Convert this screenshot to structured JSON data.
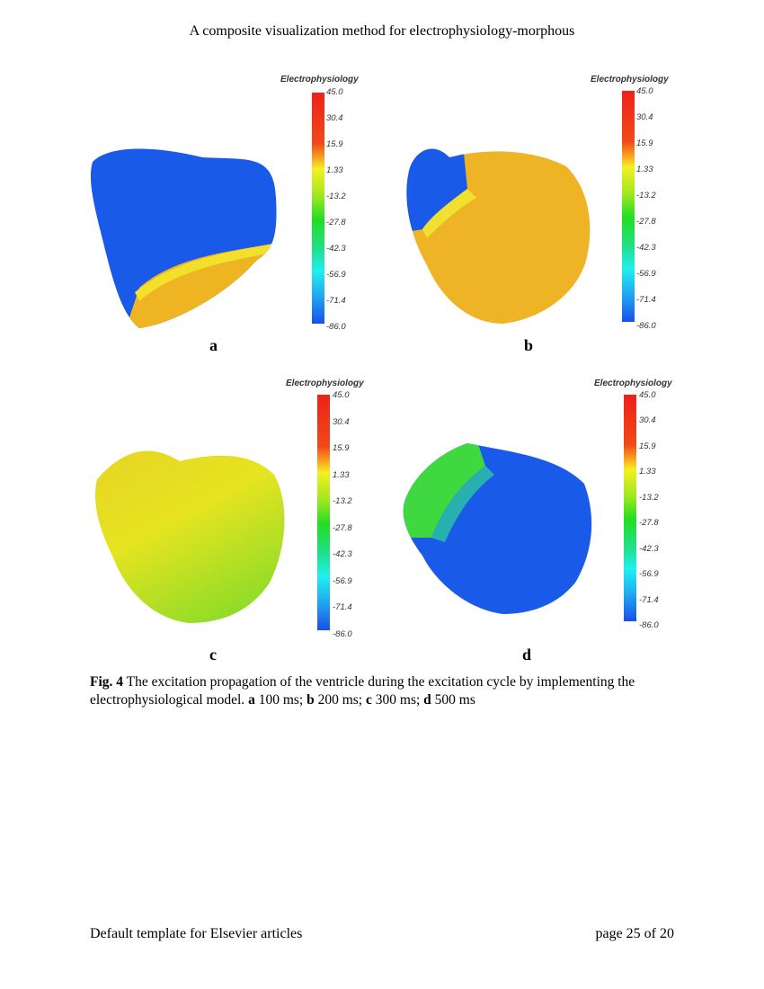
{
  "header": {
    "running_title": "A composite visualization method for electrophysiology-morphous"
  },
  "figure": {
    "colorbar": {
      "title": "Electrophysiology",
      "ticks": [
        "45.0",
        "30.4",
        "15.9",
        "1.33",
        "-13.2",
        "-27.8",
        "-42.3",
        "-56.9",
        "-71.4",
        "-86.0"
      ]
    },
    "panels": [
      {
        "label": "a"
      },
      {
        "label": "b"
      },
      {
        "label": "c"
      },
      {
        "label": "d"
      }
    ],
    "colors": {
      "blue": "#1a5ae8",
      "orange": "#f0b020",
      "yellow": "#e8e020",
      "green": "#40d840"
    }
  },
  "caption": {
    "fig_label": "Fig. 4",
    "text": " The excitation propagation of the ventricle during the excitation cycle by implementing the electrophysiological model. ",
    "parts": [
      {
        "k": "a",
        "v": " 100 ms; "
      },
      {
        "k": "b",
        "v": " 200 ms; "
      },
      {
        "k": "c",
        "v": " 300 ms; "
      },
      {
        "k": "d",
        "v": " 500 ms"
      }
    ]
  },
  "footer": {
    "left": "Default template for Elsevier articles",
    "right": "page 25 of 20"
  }
}
